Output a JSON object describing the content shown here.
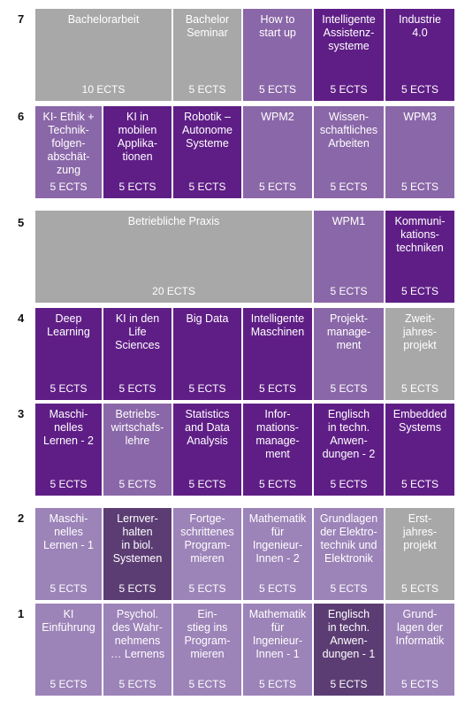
{
  "semesters": [
    {
      "label": "7"
    },
    {
      "label": "6"
    },
    {
      "label": "5"
    },
    {
      "label": "4"
    },
    {
      "label": "3"
    },
    {
      "label": "2"
    },
    {
      "label": "1"
    }
  ],
  "modules": {
    "bachelorarbeit": {
      "title": "Bachelorarbeit",
      "ects": "10 ECTS"
    },
    "bachelor_seminar": {
      "title": "Bachelor\nSeminar",
      "ects": "5 ECTS"
    },
    "how_to_start_up": {
      "title": "How to\nstart up",
      "ects": "5 ECTS"
    },
    "intelligente_assistenzsysteme": {
      "title": "Intelligente\nAssistenz-\nsysteme",
      "ects": "5 ECTS"
    },
    "industrie_40": {
      "title": "Industrie\n4.0",
      "ects": "5 ECTS"
    },
    "ki_ethik": {
      "title": "KI- Ethik +\nTechnik-\nfolgen-\nabschät-\nzung",
      "ects": "5 ECTS"
    },
    "ki_mobile": {
      "title": "KI in\nmobilen\nApplika-\ntionen",
      "ects": "5 ECTS"
    },
    "robotik": {
      "title": "Robotik –\nAutonome\nSysteme",
      "ects": "5 ECTS"
    },
    "wpm2": {
      "title": "WPM2",
      "ects": "5 ECTS"
    },
    "wiss_arbeiten": {
      "title": "Wissen-\nschaftliches\nArbeiten",
      "ects": "5 ECTS"
    },
    "wpm3": {
      "title": "WPM3",
      "ects": "5 ECTS"
    },
    "betriebliche_praxis": {
      "title": "Betriebliche Praxis",
      "ects": "20 ECTS"
    },
    "wpm1": {
      "title": "WPM1",
      "ects": "5 ECTS"
    },
    "kommunikationstechniken": {
      "title": "Kommuni-\nkations-\ntechniken",
      "ects": "5 ECTS"
    },
    "deep_learning": {
      "title": "Deep\nLearning",
      "ects": "5 ECTS"
    },
    "ki_life_sciences": {
      "title": "KI in den\nLife\nSciences",
      "ects": "5 ECTS"
    },
    "big_data": {
      "title": "Big Data",
      "ects": "5 ECTS"
    },
    "intelligente_maschinen": {
      "title": "Intelligente\nMaschinen",
      "ects": "5 ECTS"
    },
    "projektmanagement": {
      "title": "Projekt-\nmanage-\nment",
      "ects": "5 ECTS"
    },
    "zweijahresprojekt": {
      "title": "Zweit-\njahres-\nprojekt",
      "ects": "5 ECTS"
    },
    "ml2": {
      "title": "Maschi-\nnelles\nLernen - 2",
      "ects": "5 ECTS"
    },
    "bwl": {
      "title": "Betriebs-\nwirtschafs-\nlehre",
      "ects": "5 ECTS"
    },
    "statistics": {
      "title": "Statistics\nand Data\nAnalysis",
      "ects": "5 ECTS"
    },
    "infomanagement": {
      "title": "Infor-\nmations-\nmanage-\nment",
      "ects": "5 ECTS"
    },
    "englisch2": {
      "title": "Englisch\nin techn.\nAnwen-\ndungen - 2",
      "ects": "5 ECTS"
    },
    "embedded": {
      "title": "Embedded\nSystems",
      "ects": "5 ECTS"
    },
    "ml1": {
      "title": "Maschi-\nnelles\nLernen - 1",
      "ects": "5 ECTS"
    },
    "lernverhalten": {
      "title": "Lernver-\nhalten\nin biol.\nSystemen",
      "ects": "5 ECTS"
    },
    "fortgeschrittenes": {
      "title": "Fortge-\nschrittenes\nProgram-\nmieren",
      "ects": "5 ECTS"
    },
    "mathe2": {
      "title": "Mathematik\nfür\nIngenieur-\nInnen - 2",
      "ects": "5 ECTS"
    },
    "elektrotechnik": {
      "title": "Grundlagen\nder Elektro-\ntechnik und\nElektronik",
      "ects": "5 ECTS"
    },
    "erstjahresprojekt": {
      "title": "Erst-\njahres-\nprojekt",
      "ects": "5 ECTS"
    },
    "ki_einfuehrung": {
      "title": "KI\nEinführung",
      "ects": "5 ECTS"
    },
    "psychol": {
      "title": "Psychol.\ndes Wahr-\nnehmens\n… Lernens",
      "ects": "5 ECTS"
    },
    "einstieg": {
      "title": "Ein-\nstieg ins\nProgram-\nmieren",
      "ects": "5 ECTS"
    },
    "mathe1": {
      "title": "Mathematik\nfür\nIngenieur-\nInnen - 1",
      "ects": "5 ECTS"
    },
    "englisch1": {
      "title": "Englisch\nin techn.\nAnwen-\ndungen - 1",
      "ects": "5 ECTS"
    },
    "informatik": {
      "title": "Grund-\nlagen der\nInformatik",
      "ects": "5 ECTS"
    }
  }
}
